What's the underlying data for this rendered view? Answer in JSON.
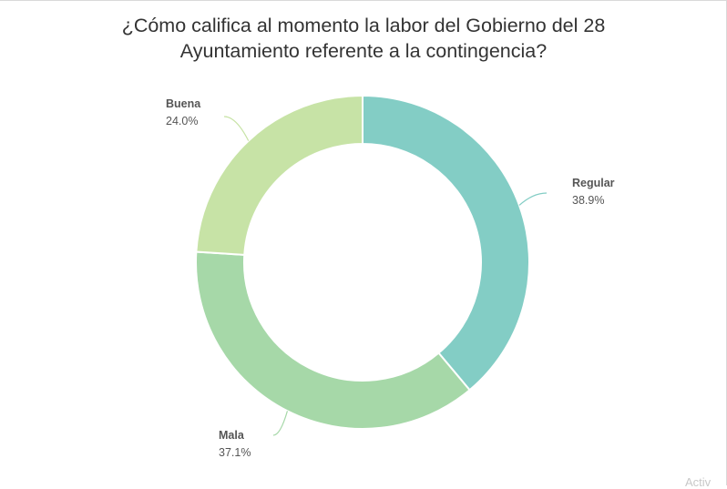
{
  "chart_data": {
    "type": "pie",
    "variant": "donut",
    "title_lines": [
      "¿Cómo califica al momento la labor del Gobierno del 28",
      "Ayuntamiento referente a la contingencia?"
    ],
    "slices": [
      {
        "label": "Regular",
        "value": 38.9,
        "value_text": "38.9%",
        "color": "#83cdc5"
      },
      {
        "label": "Mala",
        "value": 37.1,
        "value_text": "37.1%",
        "color": "#a6d8a8"
      },
      {
        "label": "Buena",
        "value": 24.0,
        "value_text": "24.0%",
        "color": "#c7e3a6"
      }
    ],
    "legend": "none",
    "labels": "outside with leader lines"
  },
  "watermark": {
    "text": "Activ"
  }
}
